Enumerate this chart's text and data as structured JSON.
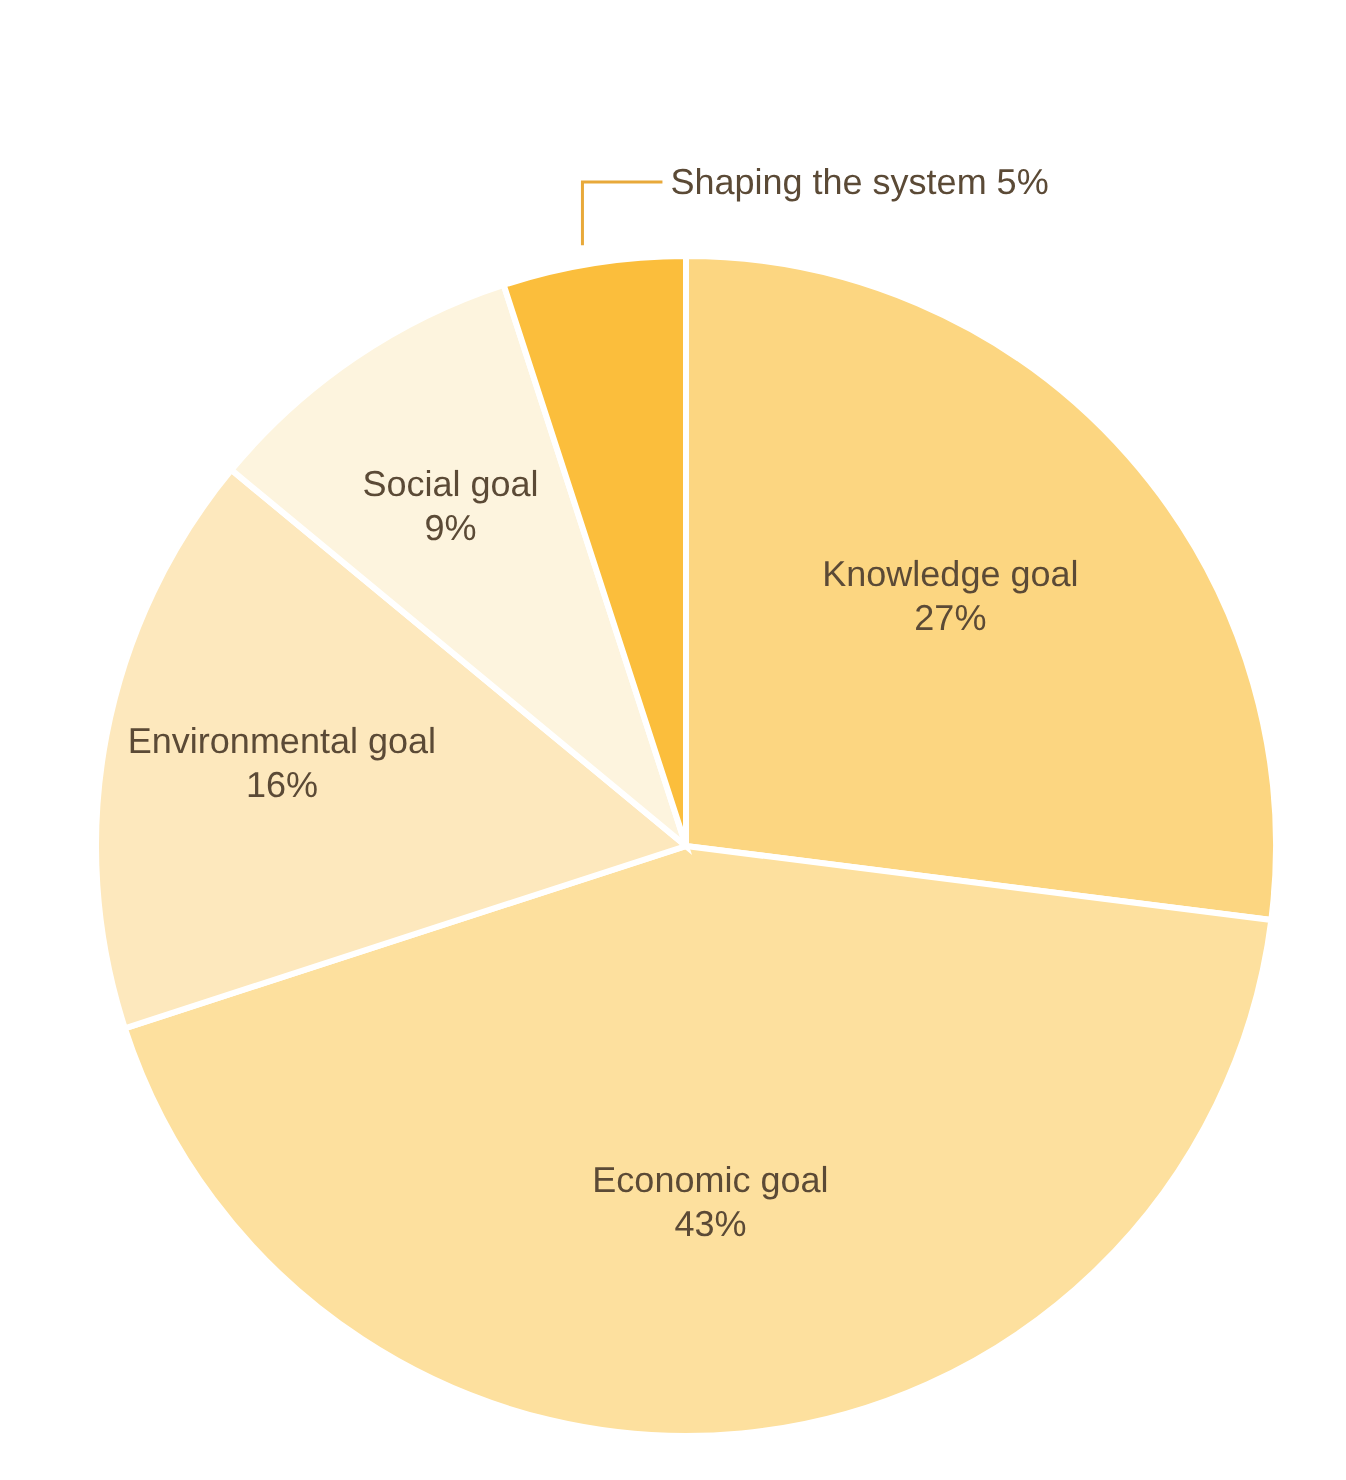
{
  "chart_data": {
    "type": "pie",
    "categories": [
      "Knowledge goal",
      "Economic goal",
      "Environmental goal",
      "Social goal",
      "Shaping the system"
    ],
    "values": [
      27,
      43,
      16,
      9,
      5
    ],
    "value_labels": [
      "27%",
      "43%",
      "16%",
      "9%",
      "5%"
    ],
    "colors": [
      "#fcd681",
      "#fde09e",
      "#fde8bd",
      "#fdf4de",
      "#fbbe3c"
    ]
  }
}
